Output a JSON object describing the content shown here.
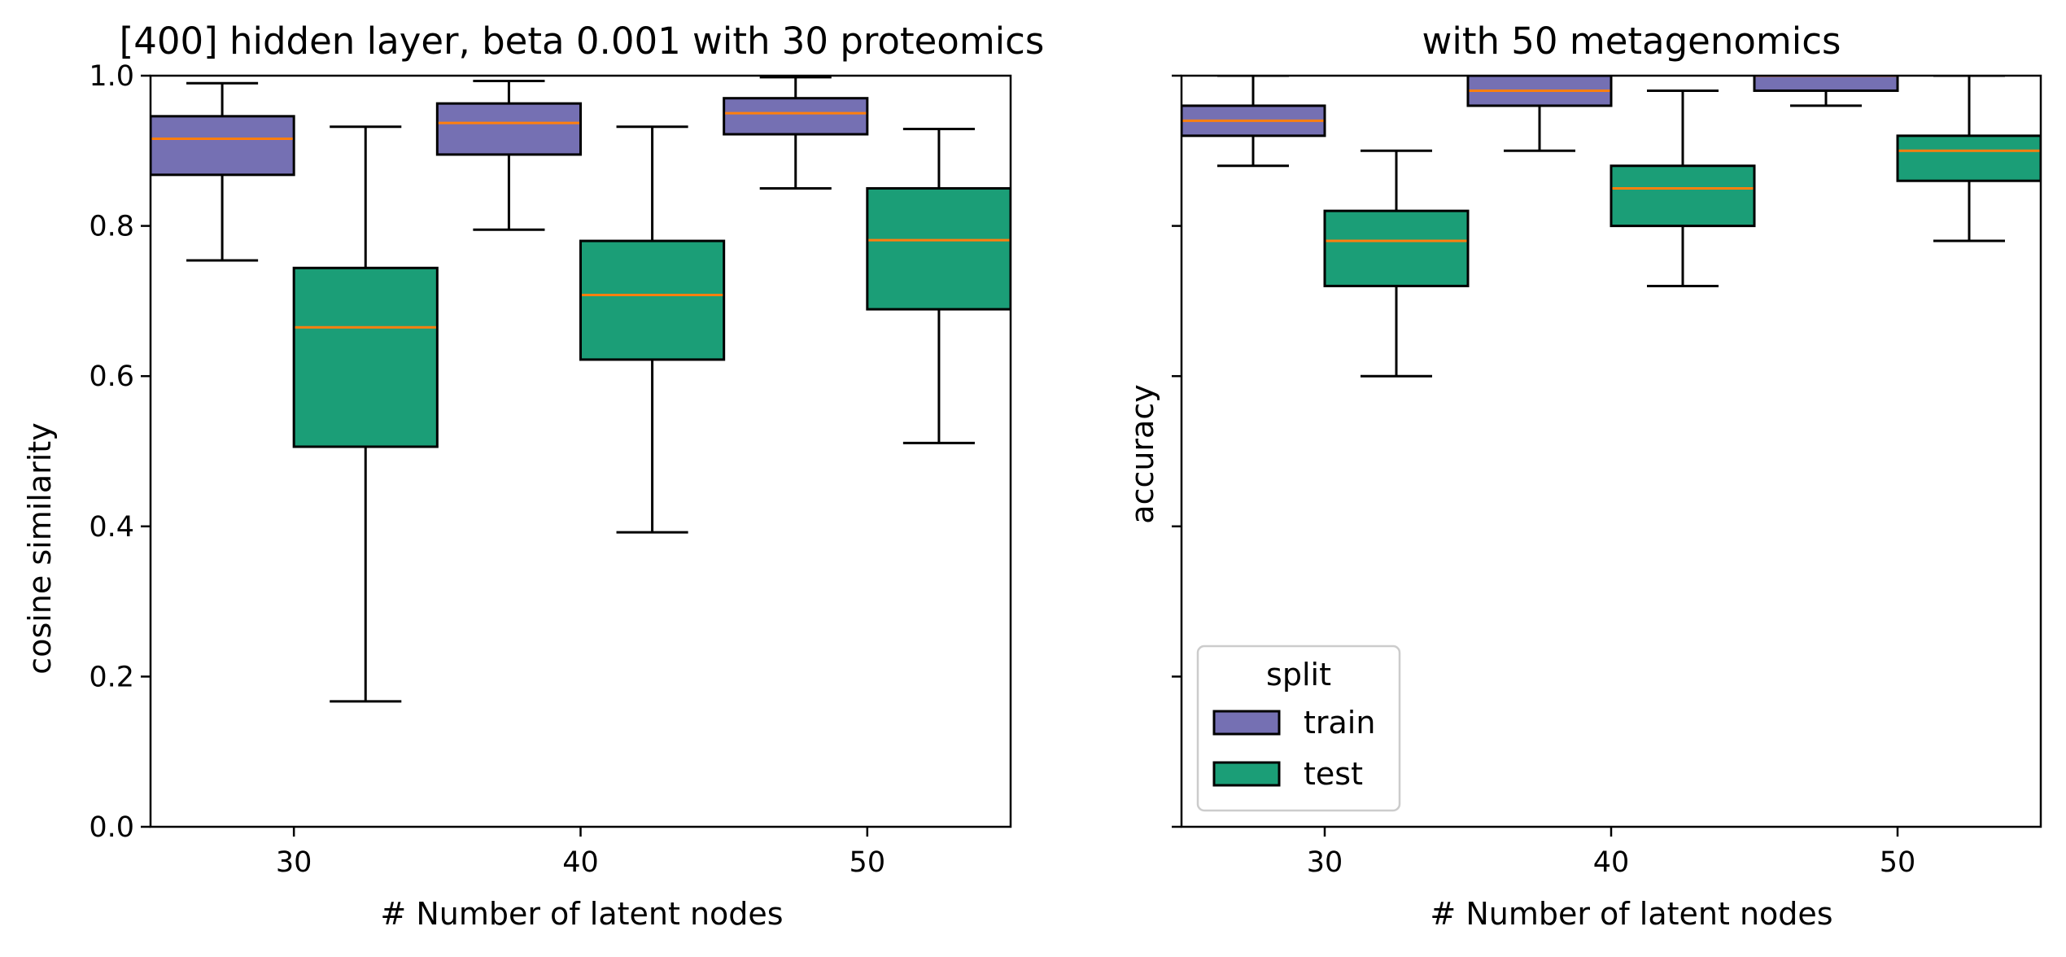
{
  "colors": {
    "train": "#7570b3",
    "test": "#1b9e77",
    "median": "#ff7f0e",
    "stroke": "#000000",
    "legend_border": "#cccccc"
  },
  "chart_data": [
    {
      "type": "box",
      "title": "[400] hidden layer, beta 0.001 with 30 proteomics",
      "xlabel": "# Number of latent nodes",
      "ylabel": "cosine similarity",
      "ylim": [
        0.0,
        1.0
      ],
      "xlim": [
        25,
        55
      ],
      "xticks": [
        30,
        40,
        50
      ],
      "xtick_labels": [
        "30",
        "40",
        "50"
      ],
      "yticks": [
        0.0,
        0.2,
        0.4,
        0.6,
        0.8,
        1.0
      ],
      "ytick_labels": [
        "0.0",
        "0.2",
        "0.4",
        "0.6",
        "0.8",
        "1.0"
      ],
      "grid": false,
      "series": [
        {
          "name": "train",
          "boxes": [
            {
              "x": 27.5,
              "whisker_low": 0.754,
              "q1": 0.868,
              "median": 0.916,
              "q3": 0.946,
              "whisker_high": 0.99
            },
            {
              "x": 37.5,
              "whisker_low": 0.795,
              "q1": 0.895,
              "median": 0.937,
              "q3": 0.963,
              "whisker_high": 0.993
            },
            {
              "x": 47.5,
              "whisker_low": 0.85,
              "q1": 0.922,
              "median": 0.95,
              "q3": 0.97,
              "whisker_high": 0.998
            }
          ]
        },
        {
          "name": "test",
          "boxes": [
            {
              "x": 32.5,
              "whisker_low": 0.167,
              "q1": 0.506,
              "median": 0.665,
              "q3": 0.744,
              "whisker_high": 0.932
            },
            {
              "x": 42.5,
              "whisker_low": 0.392,
              "q1": 0.622,
              "median": 0.708,
              "q3": 0.78,
              "whisker_high": 0.932
            },
            {
              "x": 52.5,
              "whisker_low": 0.511,
              "q1": 0.689,
              "median": 0.781,
              "q3": 0.85,
              "whisker_high": 0.929
            }
          ]
        }
      ]
    },
    {
      "type": "box",
      "title": "with 50 metagenomics",
      "xlabel": "# Number of latent nodes",
      "ylabel": "accuracy",
      "ylim": [
        0.0,
        1.0
      ],
      "xlim": [
        25,
        55
      ],
      "xticks": [
        30,
        40,
        50
      ],
      "xtick_labels": [
        "30",
        "40",
        "50"
      ],
      "yticks": [
        0.0,
        0.2,
        0.4,
        0.6,
        0.8,
        1.0
      ],
      "ytick_labels": [],
      "grid": false,
      "legend": {
        "title": "split",
        "entries": [
          "train",
          "test"
        ],
        "placement": "lower-left"
      },
      "series": [
        {
          "name": "train",
          "boxes": [
            {
              "x": 27.5,
              "whisker_low": 0.88,
              "q1": 0.92,
              "median": 0.94,
              "q3": 0.96,
              "whisker_high": 1.0
            },
            {
              "x": 37.5,
              "whisker_low": 0.9,
              "q1": 0.96,
              "median": 0.98,
              "q3": 1.0,
              "whisker_high": 1.0
            },
            {
              "x": 47.5,
              "whisker_low": 0.96,
              "q1": 0.98,
              "median": 1.0,
              "q3": 1.0,
              "whisker_high": 1.0
            }
          ]
        },
        {
          "name": "test",
          "boxes": [
            {
              "x": 32.5,
              "whisker_low": 0.6,
              "q1": 0.72,
              "median": 0.78,
              "q3": 0.82,
              "whisker_high": 0.9
            },
            {
              "x": 42.5,
              "whisker_low": 0.72,
              "q1": 0.8,
              "median": 0.85,
              "q3": 0.88,
              "whisker_high": 0.98
            },
            {
              "x": 52.5,
              "whisker_low": 0.78,
              "q1": 0.86,
              "median": 0.9,
              "q3": 0.92,
              "whisker_high": 1.0
            }
          ]
        }
      ]
    }
  ]
}
